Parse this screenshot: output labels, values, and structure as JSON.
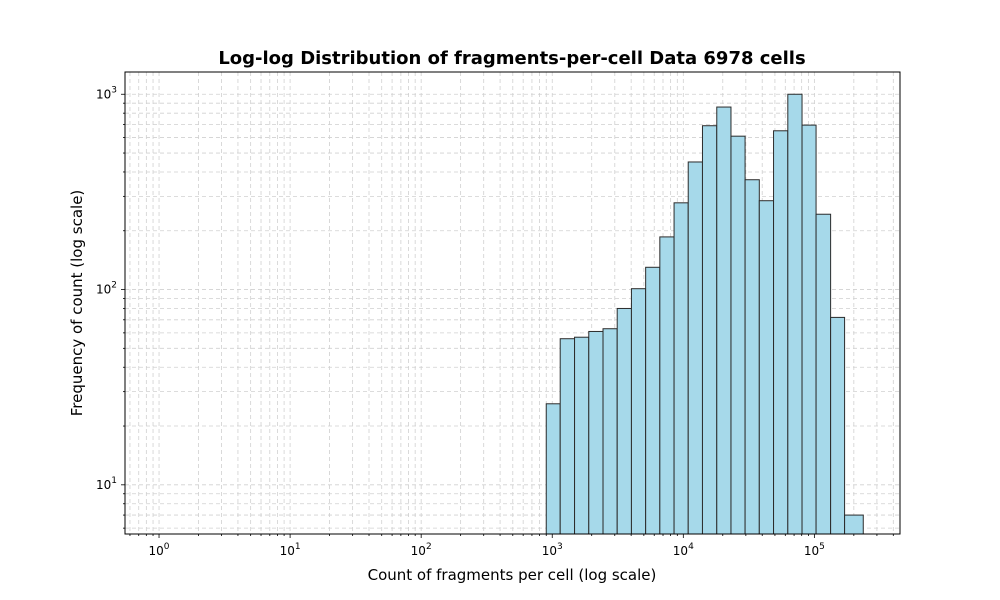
{
  "chart_data": {
    "type": "bar",
    "title": "Log-log Distribution of fragments-per-cell Data 6978 cells",
    "xlabel": "Count of fragments per cell (log scale)",
    "ylabel": "Frequency of count (log scale)",
    "x_scale": "log",
    "y_scale": "log",
    "xlim": [
      0.55,
      450000
    ],
    "ylim": [
      5.6,
      1300
    ],
    "grid": true,
    "grid_style": "dashed",
    "bar_color": "#a6d9ea",
    "edge_color": "#2b2b2b",
    "x_ticks": [
      {
        "base": "10",
        "exp": "0",
        "value": 1
      },
      {
        "base": "10",
        "exp": "1",
        "value": 10
      },
      {
        "base": "10",
        "exp": "2",
        "value": 100
      },
      {
        "base": "10",
        "exp": "3",
        "value": 1000
      },
      {
        "base": "10",
        "exp": "4",
        "value": 10000
      },
      {
        "base": "10",
        "exp": "5",
        "value": 100000
      }
    ],
    "y_ticks": [
      {
        "base": "10",
        "exp": "1",
        "value": 10
      },
      {
        "base": "10",
        "exp": "2",
        "value": 100
      },
      {
        "base": "10",
        "exp": "3",
        "value": 1000
      }
    ],
    "bins": [
      {
        "x0": 900,
        "x1": 1150,
        "count": 26
      },
      {
        "x0": 1150,
        "x1": 1480,
        "count": 56
      },
      {
        "x0": 1480,
        "x1": 1900,
        "count": 57
      },
      {
        "x0": 1900,
        "x1": 2440,
        "count": 61
      },
      {
        "x0": 2440,
        "x1": 3130,
        "count": 63
      },
      {
        "x0": 3130,
        "x1": 4020,
        "count": 80
      },
      {
        "x0": 4020,
        "x1": 5160,
        "count": 101
      },
      {
        "x0": 5160,
        "x1": 6620,
        "count": 130
      },
      {
        "x0": 6620,
        "x1": 8500,
        "count": 186
      },
      {
        "x0": 8500,
        "x1": 10900,
        "count": 278
      },
      {
        "x0": 10900,
        "x1": 14000,
        "count": 450
      },
      {
        "x0": 14000,
        "x1": 18000,
        "count": 690
      },
      {
        "x0": 18000,
        "x1": 23100,
        "count": 860
      },
      {
        "x0": 23100,
        "x1": 29600,
        "count": 610
      },
      {
        "x0": 29600,
        "x1": 38000,
        "count": 365
      },
      {
        "x0": 38000,
        "x1": 48800,
        "count": 285
      },
      {
        "x0": 48800,
        "x1": 62700,
        "count": 650
      },
      {
        "x0": 62700,
        "x1": 80500,
        "count": 1000
      },
      {
        "x0": 80500,
        "x1": 103000,
        "count": 695
      },
      {
        "x0": 103000,
        "x1": 133000,
        "count": 243
      },
      {
        "x0": 133000,
        "x1": 170000,
        "count": 72
      },
      {
        "x0": 170000,
        "x1": 236000,
        "count": 7
      }
    ]
  }
}
